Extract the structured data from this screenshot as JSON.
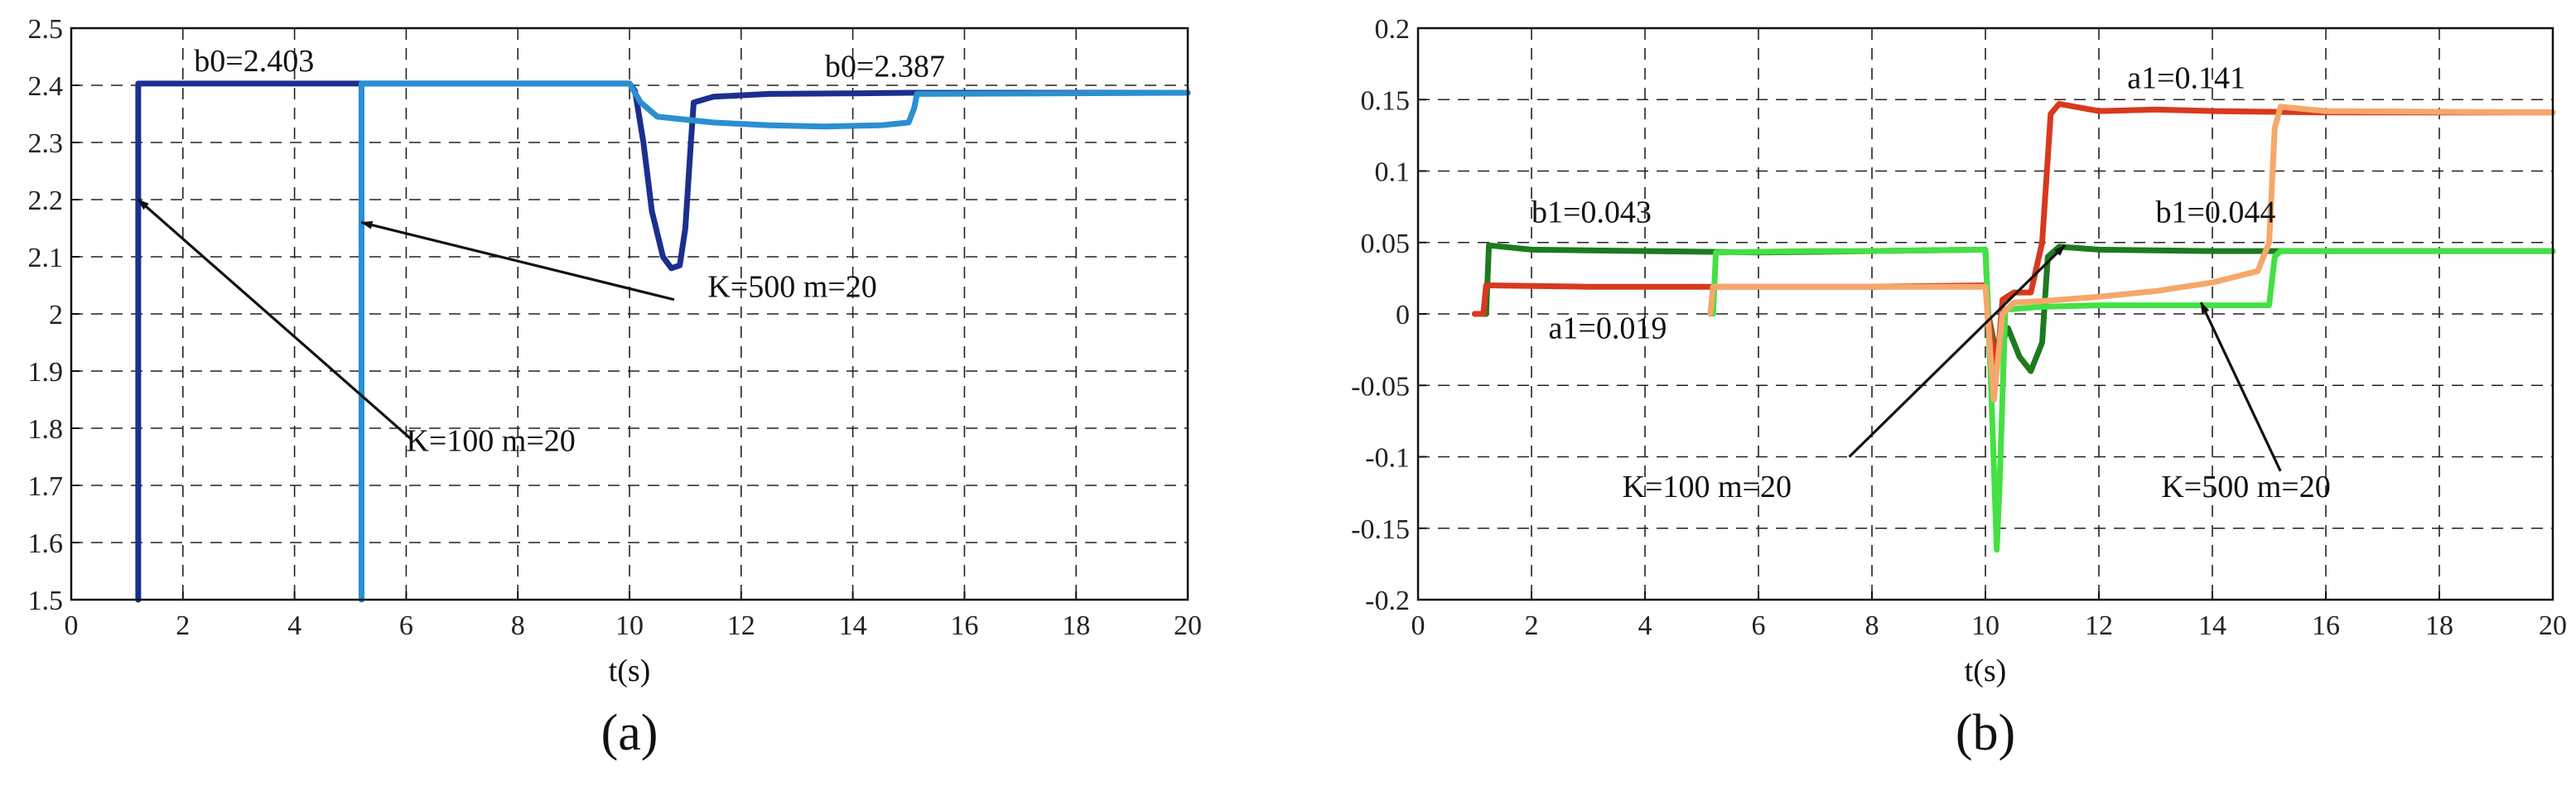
{
  "chart_data": [
    {
      "id": "a",
      "type": "line",
      "caption": "(a)",
      "xlabel": "t(s)",
      "ylabel": "",
      "xlim": [
        0,
        20
      ],
      "ylim": [
        1.5,
        2.5
      ],
      "xticks": [
        0,
        2,
        4,
        6,
        8,
        10,
        12,
        14,
        16,
        18,
        20
      ],
      "yticks": [
        1.5,
        1.6,
        1.7,
        1.8,
        1.9,
        2.0,
        2.1,
        2.2,
        2.3,
        2.4,
        2.5
      ],
      "ytick_labels": [
        "1.5",
        "1.6",
        "1.7",
        "1.8",
        "1.9",
        "2",
        "2.1",
        "2.2",
        "2.3",
        "2.4",
        "2.5"
      ],
      "grid": true,
      "series": [
        {
          "color": "#1b2f8f",
          "points": [
            [
              1.2,
              1.5
            ],
            [
              1.2,
              2.403
            ],
            [
              10.0,
              2.403
            ],
            [
              10.1,
              2.39
            ],
            [
              10.25,
              2.3
            ],
            [
              10.4,
              2.18
            ],
            [
              10.6,
              2.1
            ],
            [
              10.75,
              2.08
            ],
            [
              10.9,
              2.085
            ],
            [
              11.0,
              2.15
            ],
            [
              11.1,
              2.3
            ],
            [
              11.15,
              2.37
            ],
            [
              11.5,
              2.38
            ],
            [
              12.5,
              2.385
            ],
            [
              14.0,
              2.386
            ],
            [
              15.0,
              2.387
            ],
            [
              20.0,
              2.387
            ]
          ]
        },
        {
          "color": "#2b8fd1",
          "points": [
            [
              5.2,
              1.5
            ],
            [
              5.2,
              2.403
            ],
            [
              10.0,
              2.403
            ],
            [
              10.2,
              2.37
            ],
            [
              10.5,
              2.345
            ],
            [
              11.0,
              2.34
            ],
            [
              11.5,
              2.335
            ],
            [
              12.5,
              2.33
            ],
            [
              13.5,
              2.328
            ],
            [
              14.5,
              2.33
            ],
            [
              15.0,
              2.335
            ],
            [
              15.1,
              2.36
            ],
            [
              15.15,
              2.385
            ],
            [
              20.0,
              2.387
            ]
          ]
        }
      ],
      "annotations": [
        {
          "text": "b0=2.403",
          "x": 2.2,
          "y": 2.425
        },
        {
          "text": "b0=2.387",
          "x": 13.5,
          "y": 2.415
        },
        {
          "text": "K=500 m=20",
          "x": 11.4,
          "y": 2.03
        },
        {
          "text": "K=100 m=20",
          "x": 6.0,
          "y": 1.76
        }
      ],
      "arrows": [
        {
          "from": [
            10.8,
            2.025
          ],
          "to": [
            5.2,
            2.16
          ]
        },
        {
          "from": [
            6.1,
            1.78
          ],
          "to": [
            1.2,
            2.2
          ]
        }
      ]
    },
    {
      "id": "b",
      "type": "line",
      "caption": "(b)",
      "xlabel": "t(s)",
      "ylabel": "",
      "xlim": [
        0,
        20
      ],
      "ylim": [
        -0.2,
        0.2
      ],
      "xticks": [
        0,
        2,
        4,
        6,
        8,
        10,
        12,
        14,
        16,
        18,
        20
      ],
      "yticks": [
        -0.2,
        -0.15,
        -0.1,
        -0.05,
        0,
        0.05,
        0.1,
        0.15,
        0.2
      ],
      "ytick_labels": [
        "-0.2",
        "-0.15",
        "-0.1",
        "-0.05",
        "0",
        "0.05",
        "0.1",
        "0.15",
        "0.2"
      ],
      "grid": true,
      "series": [
        {
          "color": "#1e7a1e",
          "points": [
            [
              1.0,
              0.0
            ],
            [
              1.2,
              0.0
            ],
            [
              1.25,
              0.048
            ],
            [
              2.0,
              0.045
            ],
            [
              4.0,
              0.044
            ],
            [
              6.0,
              0.043
            ],
            [
              8.0,
              0.044
            ],
            [
              10.0,
              0.045
            ],
            [
              10.05,
              0.0
            ],
            [
              10.2,
              -0.03
            ],
            [
              10.4,
              -0.01
            ],
            [
              10.6,
              -0.03
            ],
            [
              10.8,
              -0.04
            ],
            [
              11.0,
              -0.02
            ],
            [
              11.1,
              0.04
            ],
            [
              11.3,
              0.047
            ],
            [
              12.0,
              0.045
            ],
            [
              14.0,
              0.044
            ],
            [
              16.0,
              0.044
            ],
            [
              20.0,
              0.044
            ]
          ]
        },
        {
          "color": "#d8391e",
          "points": [
            [
              1.0,
              0.0
            ],
            [
              1.15,
              0.0
            ],
            [
              1.2,
              0.02
            ],
            [
              3.0,
              0.019
            ],
            [
              6.0,
              0.019
            ],
            [
              8.0,
              0.019
            ],
            [
              10.0,
              0.02
            ],
            [
              10.05,
              0.0
            ],
            [
              10.2,
              -0.04
            ],
            [
              10.3,
              0.01
            ],
            [
              10.5,
              0.015
            ],
            [
              10.8,
              0.015
            ],
            [
              11.0,
              0.05
            ],
            [
              11.15,
              0.14
            ],
            [
              11.3,
              0.147
            ],
            [
              12.0,
              0.142
            ],
            [
              13.0,
              0.143
            ],
            [
              14.0,
              0.142
            ],
            [
              16.0,
              0.141
            ],
            [
              20.0,
              0.141
            ]
          ]
        },
        {
          "color": "#44e044",
          "points": [
            [
              5.2,
              0.0
            ],
            [
              5.25,
              0.043
            ],
            [
              7.0,
              0.044
            ],
            [
              8.0,
              0.044
            ],
            [
              10.0,
              0.045
            ],
            [
              10.1,
              -0.05
            ],
            [
              10.2,
              -0.165
            ],
            [
              10.25,
              -0.12
            ],
            [
              10.35,
              0.003
            ],
            [
              11.0,
              0.005
            ],
            [
              12.0,
              0.006
            ],
            [
              13.0,
              0.006
            ],
            [
              14.0,
              0.006
            ],
            [
              15.0,
              0.006
            ],
            [
              15.1,
              0.04
            ],
            [
              15.2,
              0.044
            ],
            [
              20.0,
              0.044
            ]
          ]
        },
        {
          "color": "#f5a86a",
          "points": [
            [
              5.15,
              0.0
            ],
            [
              5.2,
              0.019
            ],
            [
              7.0,
              0.019
            ],
            [
              8.0,
              0.019
            ],
            [
              10.0,
              0.019
            ],
            [
              10.15,
              -0.06
            ],
            [
              10.3,
              0.0
            ],
            [
              10.5,
              0.008
            ],
            [
              11.0,
              0.009
            ],
            [
              12.0,
              0.012
            ],
            [
              13.0,
              0.016
            ],
            [
              14.0,
              0.022
            ],
            [
              14.8,
              0.03
            ],
            [
              15.0,
              0.05
            ],
            [
              15.1,
              0.13
            ],
            [
              15.2,
              0.145
            ],
            [
              16.0,
              0.142
            ],
            [
              20.0,
              0.141
            ]
          ]
        }
      ],
      "annotations": [
        {
          "text": "b1=0.043",
          "x": 2.0,
          "y": 0.064
        },
        {
          "text": "a1=0.019",
          "x": 2.3,
          "y": -0.017
        },
        {
          "text": "a1=0.141",
          "x": 12.5,
          "y": 0.158
        },
        {
          "text": "b1=0.044",
          "x": 13.0,
          "y": 0.064
        },
        {
          "text": "K=100 m=20",
          "x": 3.6,
          "y": -0.128
        },
        {
          "text": "K=500 m=20",
          "x": 13.1,
          "y": -0.128
        }
      ],
      "arrows": [
        {
          "from": [
            7.6,
            -0.1
          ],
          "to": [
            11.4,
            0.048
          ]
        },
        {
          "from": [
            15.2,
            -0.11
          ],
          "to": [
            13.8,
            0.008
          ]
        }
      ]
    }
  ]
}
